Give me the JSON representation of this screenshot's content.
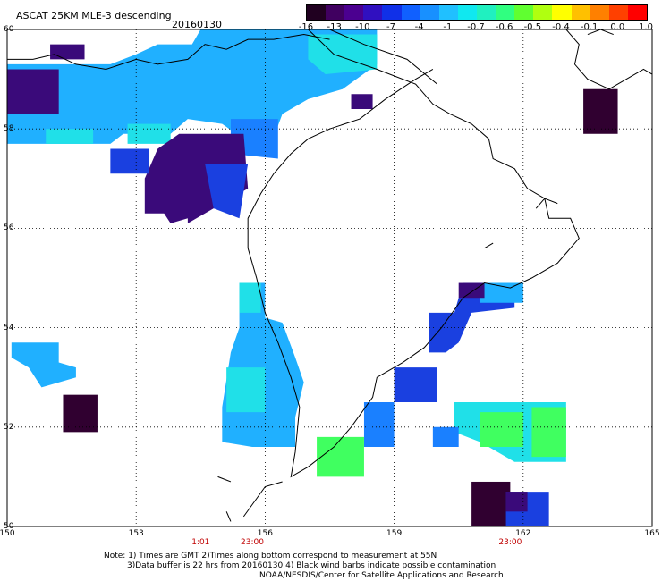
{
  "header": {
    "title": "ASCAT 25KM MLE-3 descending",
    "date": "20160130"
  },
  "colorbar": {
    "labels": [
      "-16",
      "-13",
      "-10",
      "-7",
      "-4",
      "-1",
      "-0.7",
      "-0.6",
      "-0.5",
      "-0.4",
      "-0.1",
      "0.0",
      "1.0"
    ],
    "colors": [
      "#200020",
      "#400060",
      "#4b0090",
      "#3010c0",
      "#1030e8",
      "#1060ff",
      "#1890ff",
      "#20c0ff",
      "#10e8f0",
      "#20f0c0",
      "#30ff80",
      "#60ff30",
      "#b0ff10",
      "#ffff00",
      "#ffc000",
      "#ff8000",
      "#ff4000",
      "#ff0000"
    ]
  },
  "map": {
    "lat_labels": [
      "60",
      "58",
      "56",
      "54",
      "52",
      "50"
    ],
    "lon_labels": [
      "150",
      "153",
      "156",
      "159",
      "162",
      "165"
    ],
    "time_labels": [
      {
        "lon": 154.5,
        "text": "1:01"
      },
      {
        "lon": 155.7,
        "text": "23:00"
      },
      {
        "lon": 161.7,
        "text": "23:00"
      }
    ],
    "colors": {
      "coast": "#000000",
      "grid": "#000000",
      "dark": "#300030",
      "purple": "#3a0a7a",
      "blue": "#1a40e0",
      "mid": "#1a80ff",
      "light": "#20b0ff",
      "cyan": "#20e0e8",
      "green": "#40ff60"
    }
  },
  "notes": {
    "line1": "Note: 1) Times are GMT 2)Times along bottom correspond to measurement at 55N",
    "line2": "3)Data buffer is 22 hrs from 20160130 4) Black wind barbs indicate possible contamination",
    "line3": "NOAA/NESDIS/Center for Satellite Applications and Research"
  }
}
